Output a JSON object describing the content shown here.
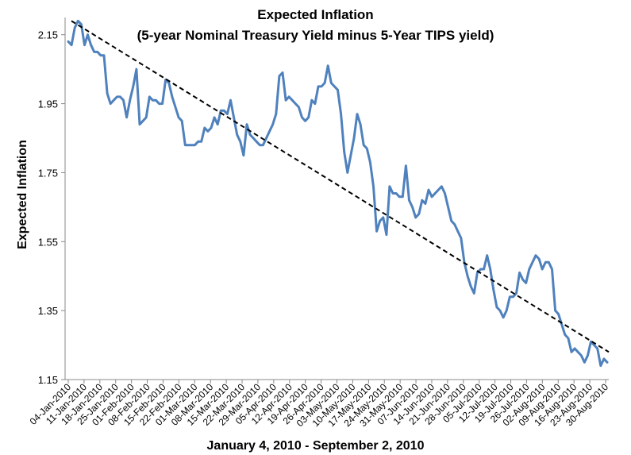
{
  "chart_data": {
    "type": "line",
    "title": "Expected Inflation",
    "subtitle": "(5-year Nominal Treasury Yield minus 5-Year TIPS yield)",
    "xlabel": "January 4, 2010 - September 2, 2010",
    "ylabel": "Expected Inflation",
    "ylim": [
      1.15,
      2.2
    ],
    "yticks": [
      "1.15",
      "1.35",
      "1.55",
      "1.75",
      "1.95",
      "2.15"
    ],
    "xticks": [
      "04-Jan-2010",
      "11-Jan-2010",
      "18-Jan-2010",
      "25-Jan-2010",
      "01-Feb-2010",
      "08-Feb-2010",
      "15-Feb-2010",
      "22-Feb-2010",
      "01-Mar-2010",
      "08-Mar-2010",
      "15-Mar-2010",
      "22-Mar-2010",
      "29-Mar-2010",
      "05-Apr-2010",
      "12-Apr-2010",
      "19-Apr-2010",
      "26-Apr-2010",
      "03-May-2010",
      "10-May-2010",
      "17-May-2010",
      "24-May-2010",
      "31-May-2010",
      "07-Jun-2010",
      "14-Jun-2010",
      "21-Jun-2010",
      "28-Jun-2010",
      "05-Jul-2010",
      "12-Jul-2010",
      "19-Jul-2010",
      "26-Jul-2010",
      "02-Aug-2010",
      "09-Aug-2010",
      "16-Aug-2010",
      "23-Aug-2010",
      "30-Aug-2010"
    ],
    "grid": false,
    "legend": "none",
    "line_color": "#4F81BD",
    "trend_color": "#000000",
    "series": [
      {
        "values": [
          2.13,
          2.12,
          2.17,
          2.19,
          2.18,
          2.12,
          2.15,
          2.12,
          2.1,
          2.1,
          2.09,
          2.09,
          1.98,
          1.95,
          1.96,
          1.97,
          1.97,
          1.96,
          1.91,
          1.96,
          2.0,
          2.05,
          1.89,
          1.9,
          1.91,
          1.97,
          1.96,
          1.96,
          1.95,
          1.95,
          2.02,
          2.01,
          1.97,
          1.94,
          1.91,
          1.9,
          1.83,
          1.83,
          1.83,
          1.83,
          1.84,
          1.84,
          1.88,
          1.87,
          1.88,
          1.91,
          1.89,
          1.93,
          1.93,
          1.92,
          1.96,
          1.91,
          1.86,
          1.84,
          1.8,
          1.89,
          1.86,
          1.85,
          1.84,
          1.83,
          1.83,
          1.85,
          1.87,
          1.89,
          1.92,
          2.03,
          2.04,
          1.96,
          1.97,
          1.96,
          1.95,
          1.94,
          1.91,
          1.9,
          1.91,
          1.96,
          1.95,
          2.0,
          2.0,
          2.01,
          2.06,
          2.01,
          2.0,
          1.99,
          1.92,
          1.81,
          1.75,
          1.8,
          1.85,
          1.92,
          1.89,
          1.83,
          1.82,
          1.78,
          1.71,
          1.58,
          1.61,
          1.62,
          1.57,
          1.71,
          1.69,
          1.69,
          1.68,
          1.68,
          1.77,
          1.67,
          1.65,
          1.62,
          1.63,
          1.67,
          1.66,
          1.7,
          1.68,
          1.69,
          1.7,
          1.71,
          1.69,
          1.65,
          1.61,
          1.6,
          1.58,
          1.56,
          1.49,
          1.45,
          1.42,
          1.4,
          1.46,
          1.47,
          1.47,
          1.51,
          1.47,
          1.41,
          1.36,
          1.35,
          1.33,
          1.35,
          1.39,
          1.39,
          1.4,
          1.46,
          1.44,
          1.43,
          1.47,
          1.49,
          1.51,
          1.5,
          1.47,
          1.49,
          1.49,
          1.47,
          1.35,
          1.34,
          1.31,
          1.28,
          1.27,
          1.23,
          1.24,
          1.23,
          1.22,
          1.2,
          1.22,
          1.26,
          1.25,
          1.24,
          1.19,
          1.21,
          1.2
        ]
      }
    ],
    "trendline": {
      "start": 2.19,
      "end": 1.23,
      "style": "dashed"
    }
  }
}
